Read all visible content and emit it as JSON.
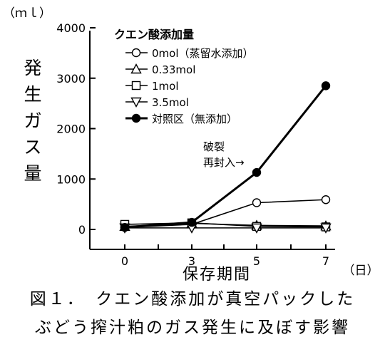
{
  "chart_data": {
    "type": "line",
    "unit_label": "（ｍｌ）",
    "ylabel": "発生ガス量",
    "xlabel": "保存期間",
    "xunit": "（日）",
    "ylim": [
      0,
      4000
    ],
    "yticks": [
      0,
      1000,
      2000,
      3000,
      4000
    ],
    "x": [
      0,
      3,
      5,
      7
    ],
    "legend_title": "クエン酸添加量",
    "legend_position": "top-left",
    "grid": false,
    "series": [
      {
        "name": "0mol（蒸留水添加）",
        "marker": "circle-open",
        "values": [
          40,
          100,
          530,
          590
        ]
      },
      {
        "name": "0.33mol",
        "marker": "triangle-up-open",
        "values": [
          60,
          120,
          80,
          70
        ]
      },
      {
        "name": "1mol",
        "marker": "square-open",
        "values": [
          100,
          130,
          60,
          50
        ]
      },
      {
        "name": "3.5mol",
        "marker": "triangle-down-open",
        "values": [
          30,
          30,
          30,
          30
        ]
      },
      {
        "name": "対照区（無添加）",
        "marker": "circle-filled",
        "values": [
          40,
          140,
          1130,
          2850
        ]
      }
    ],
    "annotations": [
      {
        "text": "破裂",
        "x": 5,
        "y": 1620
      },
      {
        "text": "再封入→",
        "x": 5,
        "y": 1300
      }
    ]
  },
  "caption": {
    "line1": "図１．　クエン酸添加が真空パックした",
    "line2": "ぶどう搾汁粕のガス発生に及ぼす影響"
  }
}
